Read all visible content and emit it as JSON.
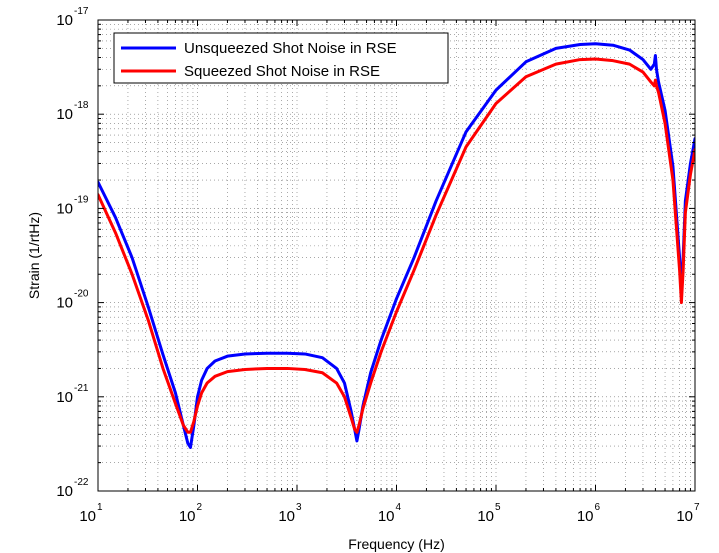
{
  "chart_data": {
    "type": "line",
    "title": "",
    "xlabel": "Frequency (Hz)",
    "ylabel": "Strain (1/rtHz)",
    "x_scale": "log",
    "y_scale": "log",
    "xlim": [
      10,
      10000000
    ],
    "ylim": [
      1e-22,
      1e-17
    ],
    "grid": true,
    "grid_style": "dotted",
    "legend_position": "top-left",
    "x_ticks": [
      {
        "base": "10",
        "exp": "1"
      },
      {
        "base": "10",
        "exp": "2"
      },
      {
        "base": "10",
        "exp": "3"
      },
      {
        "base": "10",
        "exp": "4"
      },
      {
        "base": "10",
        "exp": "5"
      },
      {
        "base": "10",
        "exp": "6"
      },
      {
        "base": "10",
        "exp": "7"
      }
    ],
    "y_ticks": [
      {
        "base": "10",
        "exp": "-22"
      },
      {
        "base": "10",
        "exp": "-21"
      },
      {
        "base": "10",
        "exp": "-20"
      },
      {
        "base": "10",
        "exp": "-19"
      },
      {
        "base": "10",
        "exp": "-18"
      },
      {
        "base": "10",
        "exp": "-17"
      }
    ],
    "series": [
      {
        "name": "Unsqueezed Shot Noise in RSE",
        "color": "#0000ff",
        "x": [
          10,
          15,
          22,
          32,
          45,
          60,
          72,
          80,
          85,
          92,
          100,
          110,
          125,
          150,
          200,
          300,
          500,
          800,
          1200,
          1800,
          2500,
          3000,
          3500,
          3800,
          4000,
          4200,
          4600,
          5500,
          7000,
          10000,
          15000,
          25000,
          50000,
          100000,
          200000,
          400000,
          700000,
          1000000,
          1500000,
          2200000,
          3000000,
          3600000,
          3900000,
          4000000,
          4100000,
          4300000,
          5000000,
          6000000,
          7000000,
          7300000,
          7600000,
          8000000,
          9000000,
          10000000
        ],
        "y": [
          1.9e-19,
          8e-20,
          3e-20,
          9e-21,
          2.8e-21,
          1.1e-21,
          5e-22,
          3.2e-22,
          2.9e-22,
          5e-22,
          1e-21,
          1.5e-21,
          2e-21,
          2.4e-21,
          2.7e-21,
          2.85e-21,
          2.9e-21,
          2.9e-21,
          2.85e-21,
          2.6e-21,
          2e-21,
          1.4e-21,
          7e-22,
          4.5e-22,
          3.4e-22,
          4.5e-22,
          8e-22,
          1.8e-21,
          4e-21,
          1.1e-20,
          3e-20,
          1.2e-19,
          6.5e-19,
          1.8e-18,
          3.6e-18,
          5e-18,
          5.5e-18,
          5.6e-18,
          5.4e-18,
          4.8e-18,
          3.8e-18,
          3e-18,
          3.4e-18,
          4.2e-18,
          3e-18,
          2.2e-18,
          1.1e-18,
          2.8e-19,
          3e-20,
          1.3e-20,
          3e-20,
          1.2e-19,
          3e-19,
          5.5e-19
        ]
      },
      {
        "name": "Squeezed Shot Noise in RSE",
        "color": "#ff0000",
        "x": [
          10,
          15,
          22,
          32,
          45,
          60,
          72,
          80,
          85,
          92,
          100,
          110,
          125,
          150,
          200,
          300,
          500,
          800,
          1200,
          1800,
          2500,
          3000,
          3500,
          3800,
          4000,
          4200,
          4600,
          5500,
          7000,
          10000,
          15000,
          25000,
          50000,
          100000,
          200000,
          400000,
          700000,
          1000000,
          1500000,
          2200000,
          3000000,
          3600000,
          3900000,
          4000000,
          4100000,
          4300000,
          5000000,
          6000000,
          7000000,
          7300000,
          7600000,
          8000000,
          9000000,
          10000000
        ],
        "y": [
          1.4e-19,
          5.5e-20,
          2e-20,
          6.5e-21,
          2e-21,
          8.5e-22,
          5e-22,
          4.2e-22,
          4.2e-22,
          5.5e-22,
          8e-22,
          1.1e-21,
          1.4e-21,
          1.65e-21,
          1.85e-21,
          1.95e-21,
          2e-21,
          2e-21,
          1.95e-21,
          1.8e-21,
          1.4e-21,
          1e-21,
          6e-22,
          4.5e-22,
          4.2e-22,
          5e-22,
          7.5e-22,
          1.4e-21,
          3e-21,
          8e-21,
          2.2e-20,
          8.5e-20,
          4.5e-19,
          1.3e-18,
          2.5e-18,
          3.4e-18,
          3.8e-18,
          3.85e-18,
          3.7e-18,
          3.4e-18,
          2.8e-18,
          2.2e-18,
          2e-18,
          2.3e-18,
          2e-18,
          1.7e-18,
          8e-19,
          2e-19,
          2.2e-20,
          1e-20,
          2.2e-20,
          9e-20,
          2.3e-19,
          4.2e-19
        ]
      }
    ]
  }
}
